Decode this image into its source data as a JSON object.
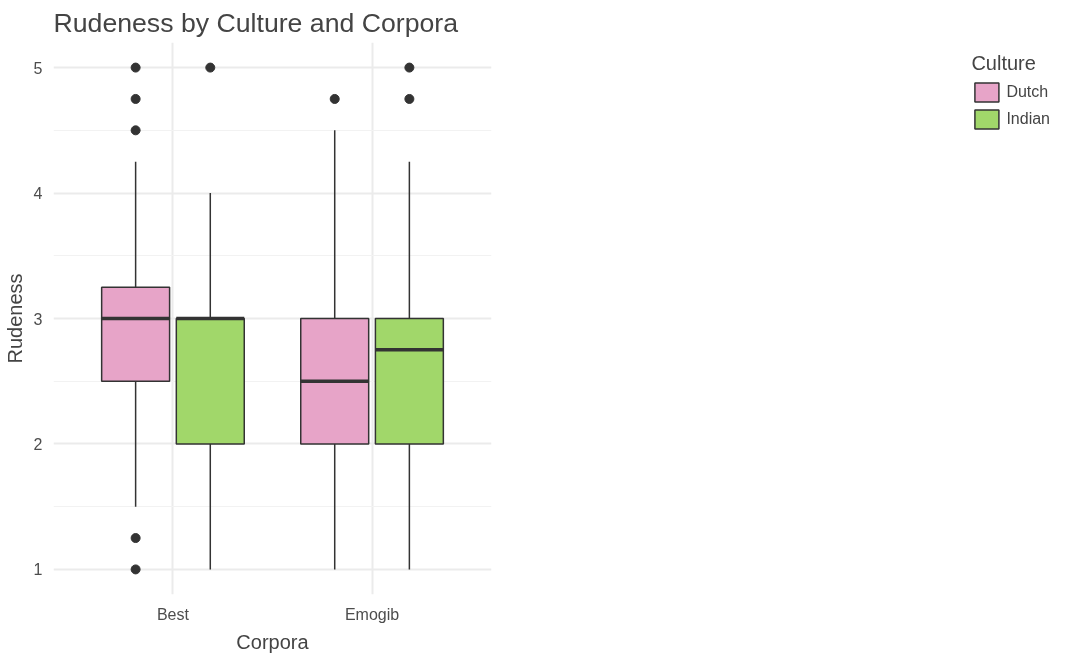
{
  "chart_data": {
    "type": "box",
    "title": "Rudeness by Culture and Corpora",
    "xlabel": "Corpora",
    "ylabel": "Rudeness",
    "legend_title": "Culture",
    "categories": [
      "Best",
      "Emogib"
    ],
    "series": [
      {
        "name": "Dutch",
        "color": "#e7a4c8",
        "boxes": [
          {
            "low": 1.5,
            "q1": 2.5,
            "median": 3,
            "q3": 3.25,
            "high": 4.25,
            "outliers": [
              4.5,
              4.75,
              5,
              1.25,
              1
            ]
          },
          {
            "low": 1,
            "q1": 2,
            "median": 2.5,
            "q3": 3,
            "high": 4.5,
            "outliers": [
              4.75
            ]
          }
        ]
      },
      {
        "name": "Indian",
        "color": "#a1d76a",
        "boxes": [
          {
            "low": 1,
            "q1": 2,
            "median": 3,
            "q3": 3,
            "high": 4,
            "outliers": [
              5
            ]
          },
          {
            "low": 1,
            "q1": 2,
            "median": 2.75,
            "q3": 3,
            "high": 4.25,
            "outliers": [
              4.75,
              5
            ]
          }
        ]
      }
    ],
    "ylim": [
      0.8,
      5.2
    ],
    "yticks": [
      1,
      2,
      3,
      4,
      5
    ],
    "grid": true,
    "legend": "right"
  }
}
